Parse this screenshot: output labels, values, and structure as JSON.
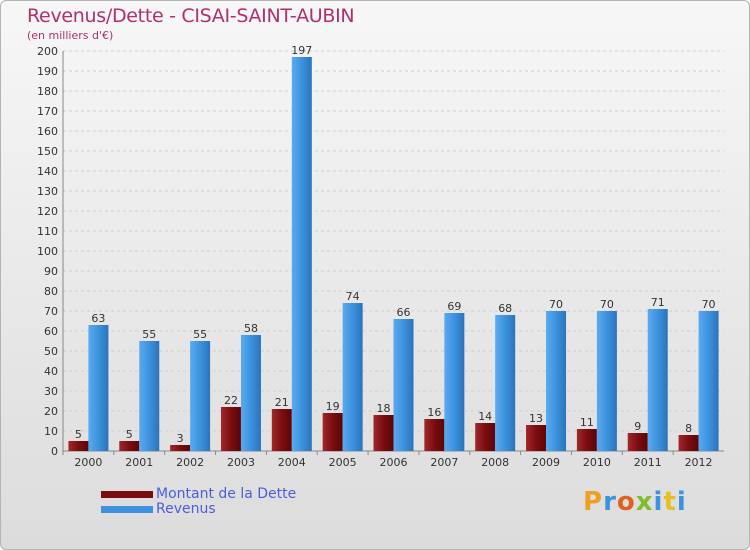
{
  "header": {
    "title": "Revenus/Dette - CISAI-SAINT-AUBIN",
    "subtitle": "(en milliers d'€)"
  },
  "colors": {
    "dette": "#7a0d10",
    "revenus": "#3d92dd",
    "title": "#b0306a",
    "legend_text": "#4a5ed8"
  },
  "legend": {
    "items": [
      {
        "label": "Montant de la Dette"
      },
      {
        "label": "Revenus"
      }
    ]
  },
  "logo": {
    "text": "Proxiti"
  },
  "chart_data": {
    "type": "bar",
    "title": "Revenus/Dette - CISAI-SAINT-AUBIN",
    "subtitle": "(en milliers d'€)",
    "categories": [
      "2000",
      "2001",
      "2002",
      "2003",
      "2004",
      "2005",
      "2006",
      "2007",
      "2008",
      "2009",
      "2010",
      "2011",
      "2012"
    ],
    "series": [
      {
        "name": "Montant de la Dette",
        "values": [
          5,
          5,
          3,
          22,
          21,
          19,
          18,
          16,
          14,
          13,
          11,
          9,
          8
        ]
      },
      {
        "name": "Revenus",
        "values": [
          63,
          55,
          55,
          58,
          197,
          74,
          66,
          69,
          68,
          70,
          70,
          71,
          70
        ]
      }
    ],
    "ylim": [
      0,
      200
    ],
    "yticks": [
      0,
      10,
      20,
      30,
      40,
      50,
      60,
      70,
      80,
      90,
      100,
      110,
      120,
      130,
      140,
      150,
      160,
      170,
      180,
      190,
      200
    ],
    "grid": true,
    "legend_position": "bottom-left"
  }
}
